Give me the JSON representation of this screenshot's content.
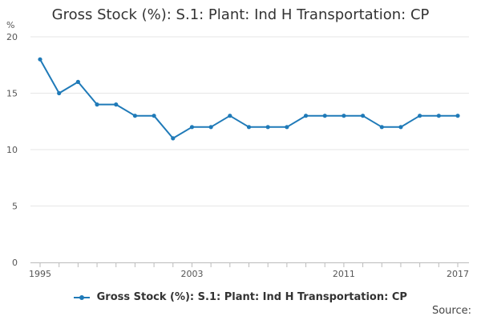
{
  "chart_data": {
    "type": "line",
    "title": "Gross Stock (%): S.1: Plant: Ind H Transportation: CP",
    "ylabel": "%",
    "xlabel": "",
    "x": [
      1995,
      1996,
      1997,
      1998,
      1999,
      2000,
      2001,
      2002,
      2003,
      2004,
      2005,
      2006,
      2007,
      2008,
      2009,
      2010,
      2011,
      2012,
      2013,
      2014,
      2015,
      2016,
      2017
    ],
    "x_tick_labels": [
      "1995",
      "2003",
      "2011",
      "2017"
    ],
    "y_ticks": [
      0,
      5,
      10,
      15,
      20
    ],
    "ylim": [
      0,
      20
    ],
    "grid": "horizontal",
    "legend_position": "bottom",
    "series": [
      {
        "name": "Gross Stock (%): S.1: Plant: Ind H Transportation: CP",
        "color": "#1f7ab8",
        "values": [
          18,
          15,
          16,
          14,
          14,
          13,
          13,
          11,
          12,
          12,
          13,
          12,
          12,
          12,
          13,
          13,
          13,
          13,
          12,
          12,
          13,
          13,
          13
        ]
      }
    ]
  },
  "footer": {
    "source_label": "Source:"
  }
}
